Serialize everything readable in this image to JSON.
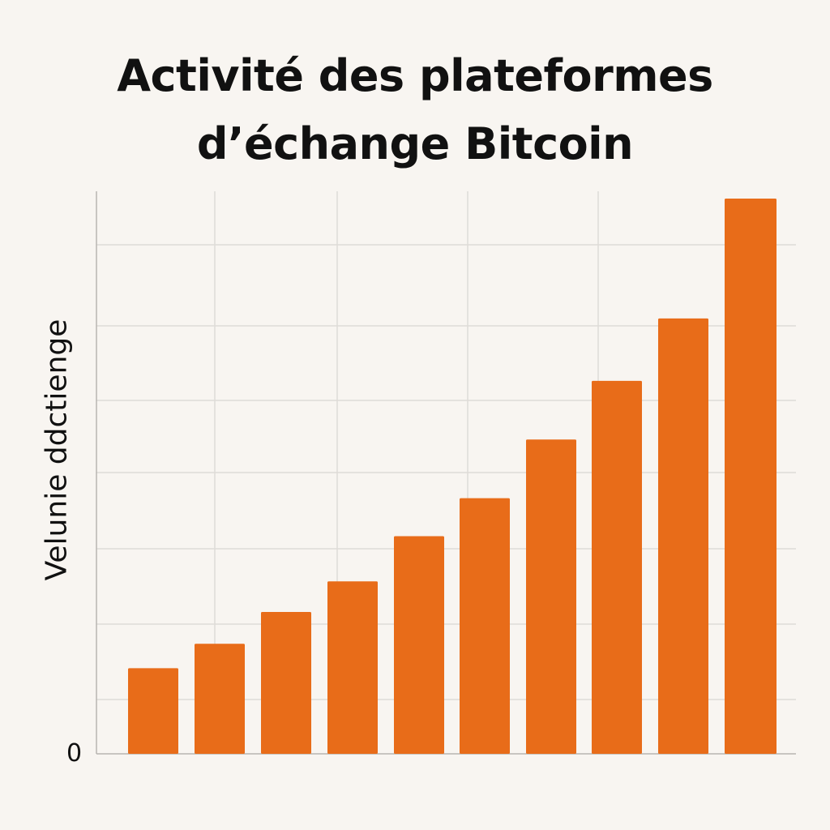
{
  "chart_data": {
    "type": "bar",
    "title_lines": [
      "Activité des plateformes",
      "d’échange Bitcoin"
    ],
    "xlabel": "",
    "ylabel": "Velunie ddctienge",
    "y_tick_labels": [
      "0"
    ],
    "categories": [
      "",
      "",
      "",
      "",
      "",
      "",
      "",
      "",
      "",
      ""
    ],
    "values": [
      14,
      18,
      23.2,
      28.2,
      35.6,
      41.8,
      51.4,
      61,
      71.2,
      90.8
    ],
    "ylim": [
      0,
      92
    ],
    "grid": true,
    "legend": "none",
    "bar_color": "#e86c19",
    "grid_color": "#dedbd7",
    "axis_color": "#b8b5b1"
  }
}
